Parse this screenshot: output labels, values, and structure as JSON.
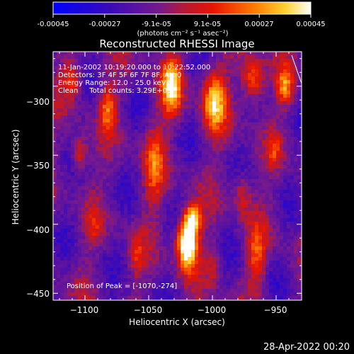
{
  "colorbar": {
    "tick_labels": [
      "-0.00045",
      "-0.00027",
      "-9.1e-05",
      "9.1e-05",
      "0.00027",
      "0.00045"
    ],
    "unit_label": "(photons cm⁻² s⁻¹ asec⁻²)"
  },
  "chart_data": {
    "type": "heatmap",
    "title": "Reconstructed RHESSI Image",
    "xlabel": "Heliocentric X (arcsec)",
    "ylabel": "Heliocentric Y (arcsec)",
    "xlim": [
      -1125,
      -930
    ],
    "ylim": [
      -455,
      -275
    ],
    "x_ticks": [
      -1100,
      -1050,
      -1000,
      -950
    ],
    "y_ticks": [
      -450,
      -400,
      -350,
      -300
    ],
    "x_tick_labels": [
      "−1100",
      "−1050",
      "−1000",
      "−950"
    ],
    "y_tick_labels": [
      "−450",
      "−400",
      "−350",
      "−300"
    ],
    "color_range": [
      -0.00045,
      0.00045
    ],
    "peak": [
      -1070,
      -274
    ],
    "annotations": [
      "11-Jan-2002 10:19:20.000 to 10:22:52.000",
      "Detectors: 3F 4F 5F 6F 7F 8F, Att 0",
      "Energy Range: 12.0 - 25.0 keV",
      "Clean     Total counts: 3.29E+03"
    ],
    "peak_label": "Position of Peak = [-1070,-274]"
  },
  "timestamp": "28-Apr-2022 00:20"
}
